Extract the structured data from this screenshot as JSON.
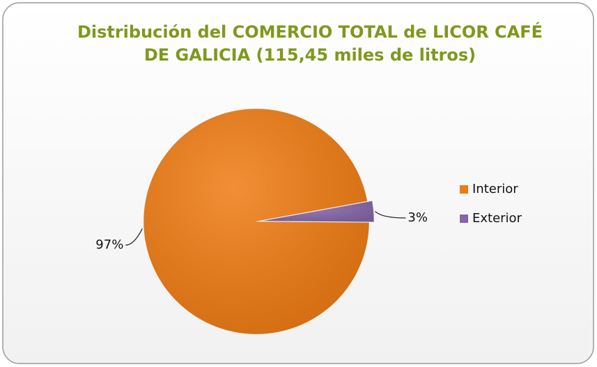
{
  "chart_data": {
    "type": "pie",
    "title": "Distribución del COMERCIO TOTAL de LICOR CAFÉ DE GALICIA (115,45 miles de litros)",
    "categories": [
      "Interior",
      "Exterior"
    ],
    "values": [
      97,
      3
    ],
    "value_labels": [
      "97%",
      "3%"
    ],
    "colors": [
      "#f07b12",
      "#8566a8"
    ],
    "legend": "right"
  }
}
